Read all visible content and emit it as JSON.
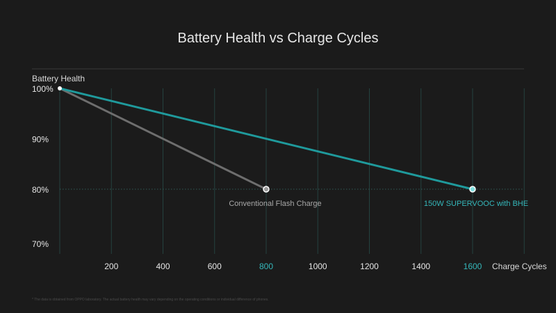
{
  "chart_data": {
    "type": "line",
    "title": "Battery Health vs Charge Cycles",
    "xlabel": "Charge Cycles",
    "ylabel": "Battery Health",
    "x_ticks": [
      200,
      400,
      600,
      800,
      1000,
      1200,
      1400,
      1600
    ],
    "highlight_x_ticks": [
      800,
      1600
    ],
    "y_ticks": [
      {
        "value": 100,
        "label": "100%"
      },
      {
        "value": 90,
        "label": "90%"
      },
      {
        "value": 80,
        "label": "80%"
      },
      {
        "value": 70,
        "label": "70%"
      }
    ],
    "xlim": [
      0,
      1800
    ],
    "ylim": [
      70,
      100
    ],
    "reference_line_y": 80,
    "series": [
      {
        "name": "Conventional Flash Charge",
        "color": "#6e6e6e",
        "label_color": "#a8a8a8",
        "points": [
          {
            "x": 0,
            "y": 100
          },
          {
            "x": 800,
            "y": 80
          }
        ]
      },
      {
        "name": "150W SUPERVOOC with BHE",
        "color": "#1f9a9c",
        "label_color": "#35b7ba",
        "points": [
          {
            "x": 0,
            "y": 100
          },
          {
            "x": 1600,
            "y": 80
          }
        ]
      }
    ],
    "footnote": "* The data is obtained from OPPO laboratory. The actual battery health may vary depending on the operating conditions or individual difference of phones."
  },
  "colors": {
    "background": "#1b1b1b",
    "grid": "#24423f",
    "axis_text": "#e6e6e6",
    "divider": "#3a3a3a"
  }
}
